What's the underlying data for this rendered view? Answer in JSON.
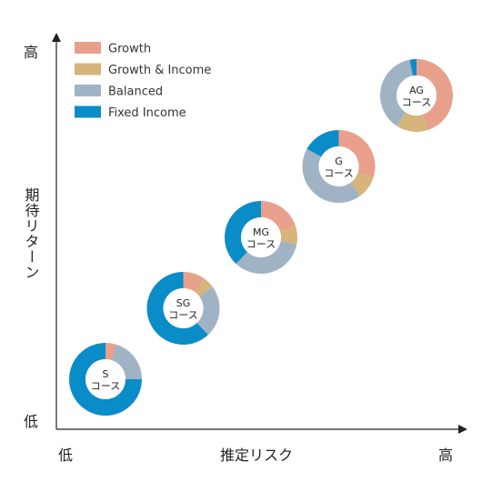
{
  "chart_data": {
    "type": "donut-bubble",
    "title": "",
    "xlabel": "推定リスク",
    "ylabel": "期待リターン",
    "x_ticks": {
      "low": "低",
      "high": "高"
    },
    "y_ticks": {
      "low": "低",
      "high": "高"
    },
    "legend_position": "top-left",
    "components": [
      {
        "name": "Growth",
        "color": "#e8a08c"
      },
      {
        "name": "Growth & Income",
        "color": "#d6b47c"
      },
      {
        "name": "Balanced",
        "color": "#9fb3c4"
      },
      {
        "name": "Fixed Income",
        "color": "#0a8cc8"
      }
    ],
    "courses": [
      {
        "code": "S",
        "label": "コース",
        "risk": 1,
        "return": 1,
        "allocation": [
          5,
          0,
          20,
          75
        ]
      },
      {
        "code": "SG",
        "label": "コース",
        "risk": 2,
        "return": 2,
        "allocation": [
          10,
          5,
          23,
          62
        ]
      },
      {
        "code": "MG",
        "label": "コース",
        "risk": 3,
        "return": 3,
        "allocation": [
          20,
          8,
          34,
          38
        ]
      },
      {
        "code": "G",
        "label": "コース",
        "risk": 4,
        "return": 4,
        "allocation": [
          30,
          10,
          43,
          17
        ]
      },
      {
        "code": "AG",
        "label": "コース",
        "risk": 5,
        "return": 5,
        "allocation": [
          45,
          14,
          38,
          3
        ]
      }
    ]
  }
}
